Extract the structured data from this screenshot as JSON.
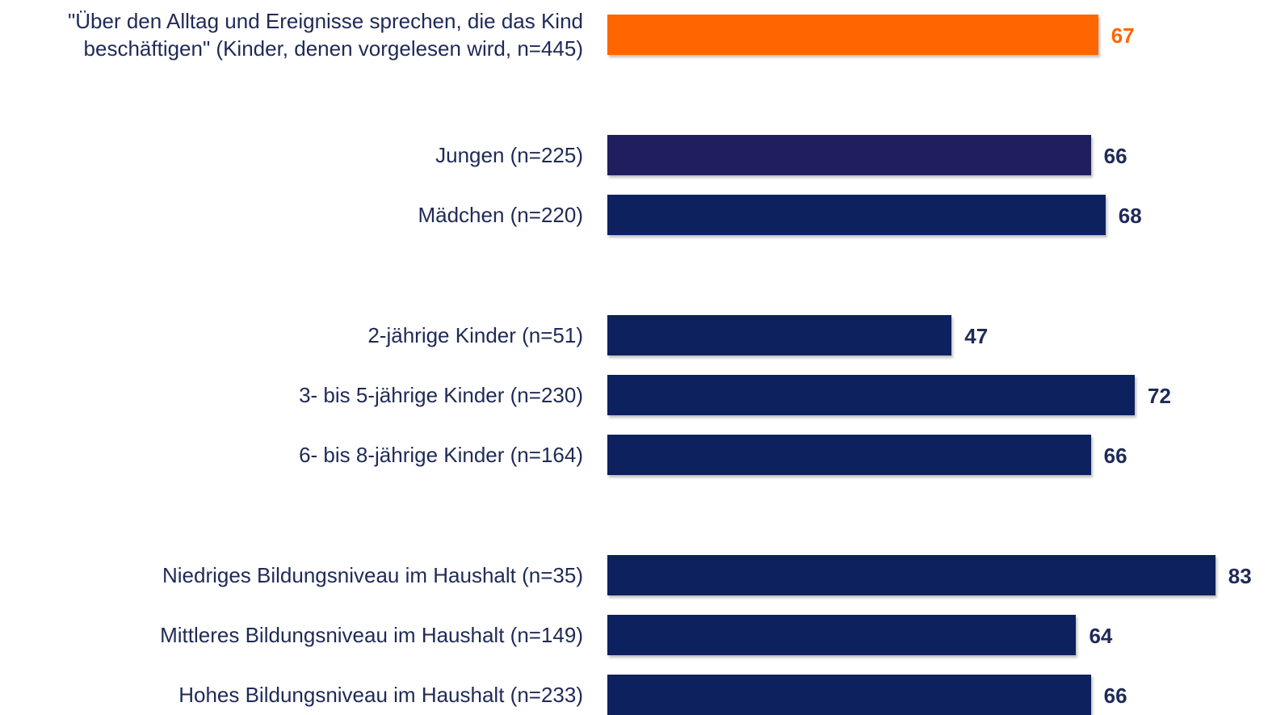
{
  "chart_data": {
    "type": "bar",
    "orientation": "horizontal",
    "categories": [
      "\"Über den Alltag und Ereignisse sprechen, die das Kind\nbeschäftigen\" (Kinder, denen vorgelesen wird, n=445)",
      "Jungen (n=225)",
      "Mädchen (n=220)",
      "2-jährige Kinder (n=51)",
      "3- bis 5-jährige Kinder (n=230)",
      "6- bis 8-jährige Kinder (n=164)",
      "Niedriges Bildungsniveau im Haushalt (n=35)",
      "Mittleres Bildungsniveau im Haushalt (n=149)",
      "Hohes Bildungsniveau im Haushalt (n=233)"
    ],
    "values": [
      67,
      66,
      68,
      47,
      72,
      66,
      83,
      64,
      66
    ],
    "colors": [
      "#ff6600",
      "#1f1f5e",
      "#0d215e",
      "#0d215e",
      "#0d215e",
      "#0d215e",
      "#0d215e",
      "#0d215e",
      "#0d215e"
    ],
    "label_colors": [
      "#ff6600",
      "#1f2a56",
      "#1f2a56",
      "#1f2a56",
      "#1f2a56",
      "#1f2a56",
      "#1f2a56",
      "#1f2a56",
      "#1f2a56"
    ]
  }
}
